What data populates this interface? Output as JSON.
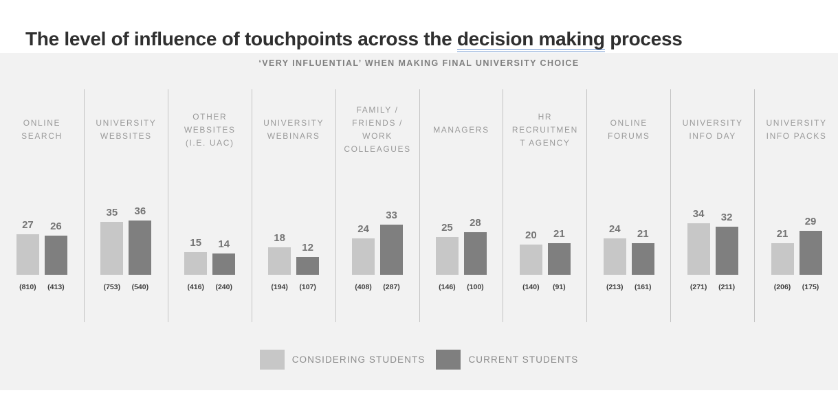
{
  "page": {
    "title_prefix": "The level of influence of touchpoints across the ",
    "title_link": "decision making",
    "title_suffix": " process"
  },
  "chart": {
    "subtitle": "‘VERY INFLUENTIAL’ WHEN MAKING FINAL UNIVERSITY CHOICE"
  },
  "legend": {
    "considering_label": "CONSIDERING STUDENTS",
    "current_label": "CURRENT STUDENTS"
  },
  "colors": {
    "considering_bar": "#c7c7c7",
    "current_bar": "#7f7f7f",
    "chart_background": "#f2f2f2",
    "link_underline": "#6a92cc"
  },
  "chart_data": {
    "type": "bar",
    "title": "The level of influence of touchpoints across the decision making process",
    "subtitle": "‘VERY INFLUENTIAL’ WHEN MAKING FINAL UNIVERSITY CHOICE",
    "categories": [
      "ONLINE SEARCH",
      "UNIVERSITY WEBSITES",
      "OTHER WEBSITES (I.E. UAC)",
      "UNIVERSITY WEBINARS",
      "FAMILY / FRIENDS / WORK COLLEAGUES",
      "MANAGERS",
      "HR RECRUITMENT AGENCY",
      "ONLINE FORUMS",
      "UNIVERSITY INFO DAY",
      "UNIVERSITY INFO PACKS"
    ],
    "category_label_lines": [
      [
        "ONLINE",
        "SEARCH"
      ],
      [
        "UNIVERSITY",
        "WEBSITES"
      ],
      [
        "OTHER",
        "WEBSITES",
        "(I.E. UAC)"
      ],
      [
        "UNIVERSITY",
        "WEBINARS"
      ],
      [
        "FAMILY /",
        "FRIENDS /",
        "WORK",
        "COLLEAGUES"
      ],
      [
        "MANAGERS"
      ],
      [
        "HR",
        "RECRUITMEN",
        "T AGENCY"
      ],
      [
        "ONLINE",
        "FORUMS"
      ],
      [
        "UNIVERSITY",
        "INFO DAY"
      ],
      [
        "UNIVERSITY",
        "INFO PACKS"
      ]
    ],
    "series": [
      {
        "name": "CONSIDERING STUDENTS",
        "values": [
          27,
          35,
          15,
          18,
          24,
          25,
          20,
          24,
          34,
          21
        ],
        "sample_sizes": [
          "(810)",
          "(753)",
          "(416)",
          "(194)",
          "(408)",
          "(146)",
          "(140)",
          "(213)",
          "(271)",
          "(206)"
        ]
      },
      {
        "name": "CURRENT STUDENTS",
        "values": [
          26,
          36,
          14,
          12,
          33,
          28,
          21,
          21,
          32,
          29
        ],
        "sample_sizes": [
          "(413)",
          "(540)",
          "(240)",
          "(107)",
          "(287)",
          "(100)",
          "(91)",
          "(161)",
          "(211)",
          "(175)"
        ]
      }
    ],
    "ylim": [
      0,
      40
    ],
    "grid": false,
    "legend_position": "bottom"
  }
}
